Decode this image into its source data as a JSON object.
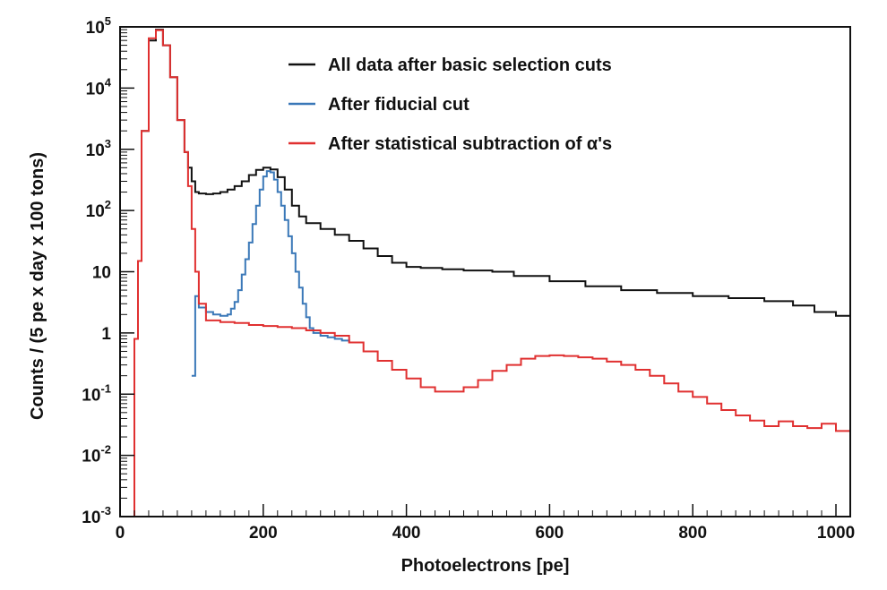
{
  "chart_data": {
    "type": "line",
    "xlabel": "Photoelectrons [pe]",
    "ylabel": "Counts / (5 pe x day x 100 tons)",
    "xlim": [
      0,
      1020
    ],
    "ylim": [
      0.001,
      100000
    ],
    "yscale": "log",
    "x_ticks": [
      {
        "value": 0,
        "label": "0"
      },
      {
        "value": 200,
        "label": "200"
      },
      {
        "value": 400,
        "label": "400"
      },
      {
        "value": 600,
        "label": "600"
      },
      {
        "value": 800,
        "label": "800"
      },
      {
        "value": 1000,
        "label": "1000"
      }
    ],
    "y_ticks": [
      {
        "value": 0.001,
        "base": "10",
        "exp": "-3"
      },
      {
        "value": 0.01,
        "base": "10",
        "exp": "-2"
      },
      {
        "value": 0.1,
        "base": "10",
        "exp": "-1"
      },
      {
        "value": 1,
        "base": "1",
        "exp": ""
      },
      {
        "value": 10,
        "base": "10",
        "exp": ""
      },
      {
        "value": 100,
        "base": "10",
        "exp": "2"
      },
      {
        "value": 1000,
        "base": "10",
        "exp": "3"
      },
      {
        "value": 10000,
        "base": "10",
        "exp": "4"
      },
      {
        "value": 100000,
        "base": "10",
        "exp": "5"
      }
    ],
    "series": [
      {
        "name": "All data after basic selection cuts",
        "color": "#111111",
        "points": [
          [
            15,
            0.001
          ],
          [
            20,
            0.8
          ],
          [
            25,
            15
          ],
          [
            30,
            2000
          ],
          [
            40,
            60000
          ],
          [
            50,
            90000
          ],
          [
            60,
            50000
          ],
          [
            70,
            15000
          ],
          [
            80,
            3000
          ],
          [
            90,
            900
          ],
          [
            95,
            500
          ],
          [
            100,
            300
          ],
          [
            105,
            200
          ],
          [
            110,
            190
          ],
          [
            120,
            185
          ],
          [
            130,
            190
          ],
          [
            140,
            200
          ],
          [
            150,
            220
          ],
          [
            160,
            250
          ],
          [
            170,
            300
          ],
          [
            180,
            380
          ],
          [
            190,
            460
          ],
          [
            200,
            500
          ],
          [
            210,
            470
          ],
          [
            220,
            350
          ],
          [
            230,
            220
          ],
          [
            240,
            120
          ],
          [
            250,
            80
          ],
          [
            260,
            62
          ],
          [
            280,
            50
          ],
          [
            300,
            40
          ],
          [
            320,
            32
          ],
          [
            340,
            24
          ],
          [
            360,
            18
          ],
          [
            380,
            14
          ],
          [
            400,
            12
          ],
          [
            420,
            11.5
          ],
          [
            450,
            11
          ],
          [
            480,
            10.5
          ],
          [
            520,
            10
          ],
          [
            550,
            8.5
          ],
          [
            600,
            7
          ],
          [
            650,
            5.8
          ],
          [
            700,
            5
          ],
          [
            750,
            4.5
          ],
          [
            800,
            4
          ],
          [
            850,
            3.7
          ],
          [
            900,
            3.3
          ],
          [
            940,
            2.8
          ],
          [
            970,
            2.2
          ],
          [
            1000,
            1.9
          ],
          [
            1020,
            1.6
          ]
        ]
      },
      {
        "name": "After fiducial cut",
        "color": "#3a78b8",
        "points": [
          [
            100,
            0.2
          ],
          [
            105,
            4
          ],
          [
            110,
            2.6
          ],
          [
            120,
            2.2
          ],
          [
            130,
            2.0
          ],
          [
            140,
            1.9
          ],
          [
            150,
            2.0
          ],
          [
            155,
            2.5
          ],
          [
            160,
            3.2
          ],
          [
            165,
            5
          ],
          [
            170,
            9
          ],
          [
            175,
            16
          ],
          [
            180,
            30
          ],
          [
            185,
            60
          ],
          [
            190,
            120
          ],
          [
            195,
            220
          ],
          [
            200,
            360
          ],
          [
            205,
            440
          ],
          [
            210,
            420
          ],
          [
            215,
            320
          ],
          [
            220,
            200
          ],
          [
            225,
            120
          ],
          [
            230,
            70
          ],
          [
            235,
            38
          ],
          [
            240,
            20
          ],
          [
            245,
            10
          ],
          [
            250,
            5.5
          ],
          [
            255,
            3
          ],
          [
            260,
            1.8
          ],
          [
            265,
            1.2
          ],
          [
            270,
            1.0
          ],
          [
            280,
            0.9
          ],
          [
            290,
            0.85
          ],
          [
            300,
            0.8
          ],
          [
            310,
            0.75
          ],
          [
            320,
            0.7
          ]
        ]
      },
      {
        "name": "After statistical subtraction of α's",
        "color": "#e03030",
        "points": [
          [
            15,
            0.001
          ],
          [
            20,
            0.8
          ],
          [
            25,
            15
          ],
          [
            30,
            2000
          ],
          [
            40,
            65000
          ],
          [
            50,
            88000
          ],
          [
            60,
            50000
          ],
          [
            70,
            15000
          ],
          [
            80,
            3000
          ],
          [
            90,
            900
          ],
          [
            95,
            250
          ],
          [
            100,
            50
          ],
          [
            105,
            10
          ],
          [
            110,
            3
          ],
          [
            120,
            1.6
          ],
          [
            140,
            1.5
          ],
          [
            160,
            1.45
          ],
          [
            180,
            1.35
          ],
          [
            200,
            1.3
          ],
          [
            220,
            1.25
          ],
          [
            240,
            1.2
          ],
          [
            260,
            1.1
          ],
          [
            280,
            1.0
          ],
          [
            300,
            0.9
          ],
          [
            320,
            0.7
          ],
          [
            340,
            0.5
          ],
          [
            360,
            0.35
          ],
          [
            380,
            0.25
          ],
          [
            400,
            0.18
          ],
          [
            420,
            0.13
          ],
          [
            440,
            0.11
          ],
          [
            460,
            0.11
          ],
          [
            480,
            0.13
          ],
          [
            500,
            0.17
          ],
          [
            520,
            0.24
          ],
          [
            540,
            0.3
          ],
          [
            560,
            0.38
          ],
          [
            580,
            0.42
          ],
          [
            600,
            0.43
          ],
          [
            620,
            0.42
          ],
          [
            640,
            0.4
          ],
          [
            660,
            0.38
          ],
          [
            680,
            0.34
          ],
          [
            700,
            0.3
          ],
          [
            720,
            0.25
          ],
          [
            740,
            0.2
          ],
          [
            760,
            0.15
          ],
          [
            780,
            0.11
          ],
          [
            800,
            0.09
          ],
          [
            820,
            0.07
          ],
          [
            840,
            0.055
          ],
          [
            860,
            0.045
          ],
          [
            880,
            0.037
          ],
          [
            900,
            0.03
          ],
          [
            920,
            0.036
          ],
          [
            940,
            0.03
          ],
          [
            960,
            0.028
          ],
          [
            980,
            0.033
          ],
          [
            1000,
            0.025
          ],
          [
            1020,
            0.02
          ]
        ]
      }
    ],
    "legend": {
      "position": "top-right",
      "entries": [
        {
          "label": "All data after basic selection cuts",
          "color": "#111111"
        },
        {
          "label": "After fiducial cut",
          "color": "#3a78b8"
        },
        {
          "label": "After statistical subtraction of α's",
          "color": "#e03030"
        }
      ]
    },
    "grid": false
  }
}
